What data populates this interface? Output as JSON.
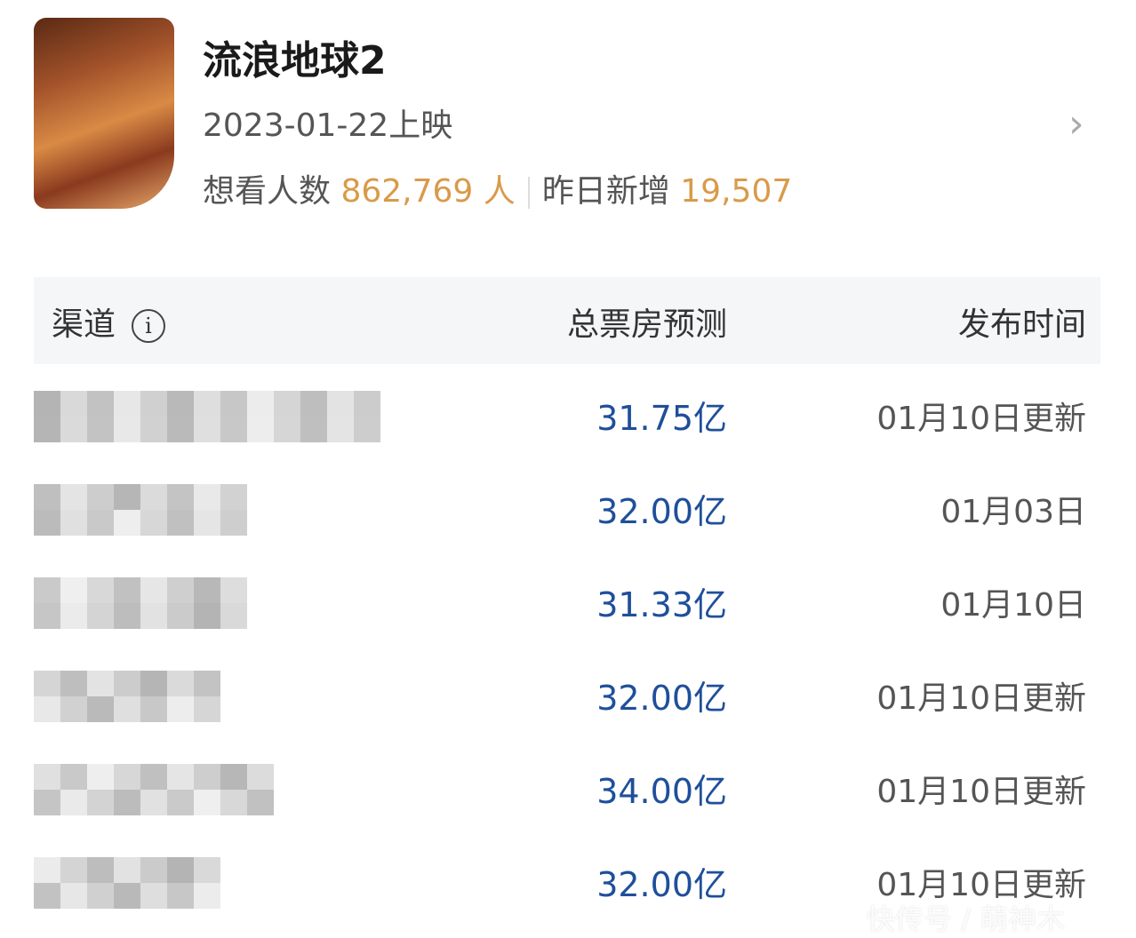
{
  "movie": {
    "title": "流浪地球2",
    "release": "2023-01-22上映",
    "want_label": "想看人数",
    "want_count": "862,769",
    "want_unit": "人",
    "new_label": "昨日新增",
    "new_count": "19,507"
  },
  "table": {
    "headers": [
      "渠道",
      "总票房预测",
      "发布时间"
    ],
    "rows": [
      {
        "value": "31.75亿",
        "time": "01月10日更新"
      },
      {
        "value": "32.00亿",
        "time": "01月03日"
      },
      {
        "value": "31.33亿",
        "time": "01月10日"
      },
      {
        "value": "32.00亿",
        "time": "01月10日更新"
      },
      {
        "value": "34.00亿",
        "time": "01月10日更新"
      },
      {
        "value": "32.00亿",
        "time": "01月10日更新"
      }
    ]
  },
  "watermark": "快传号 / 萌神木",
  "colors": {
    "accent": "#d99a4a",
    "value": "#1f4f9a"
  }
}
